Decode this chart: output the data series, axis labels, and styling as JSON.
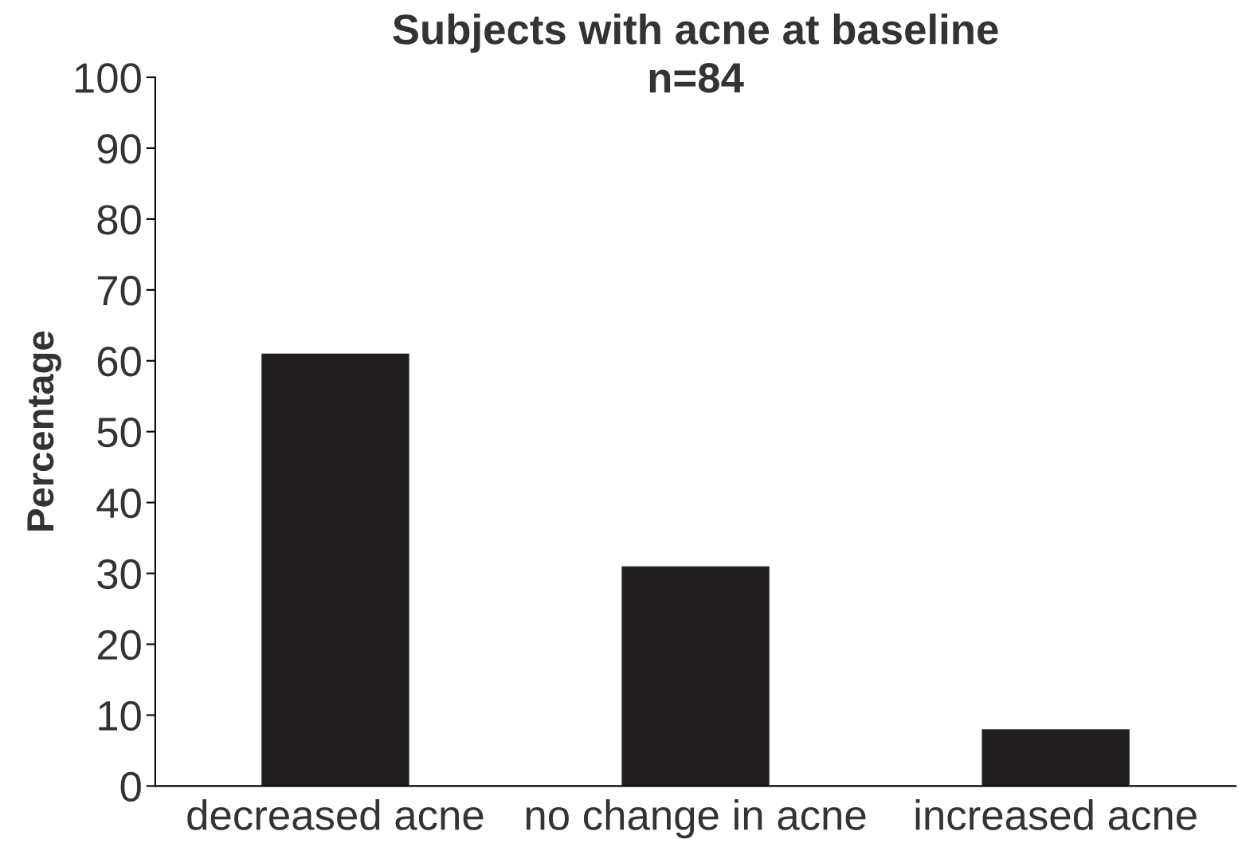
{
  "chart_data": {
    "type": "bar",
    "title": "Subjects with acne at baseline\nn=84",
    "ylabel": "Percentage",
    "categories": [
      "decreased acne",
      "no change in acne",
      "increased acne"
    ],
    "values": [
      61,
      31,
      8
    ],
    "color": "#231f20",
    "ylim": [
      0,
      100
    ],
    "yticks": [
      0,
      10,
      20,
      30,
      40,
      50,
      60,
      70,
      80,
      90,
      100
    ],
    "grid": false,
    "legend": false
  }
}
